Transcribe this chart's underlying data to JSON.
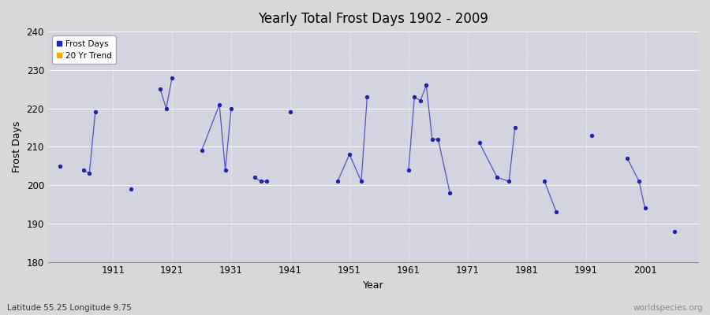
{
  "title": "Yearly Total Frost Days 1902 - 2009",
  "xlabel": "Year",
  "ylabel": "Frost Days",
  "subtitle": "Latitude 55.25 Longitude 9.75",
  "watermark": "worldspecies.org",
  "ylim": [
    180,
    240
  ],
  "xlim": [
    1900,
    2010
  ],
  "yticks": [
    180,
    190,
    200,
    210,
    220,
    230,
    240
  ],
  "xticks": [
    1911,
    1921,
    1931,
    1941,
    1951,
    1961,
    1971,
    1981,
    1991,
    2001
  ],
  "background_color": "#d8d8d8",
  "plot_bg_color": "#d4d4e0",
  "line_color": "#3333bb",
  "grid_color": "#ffffff",
  "scatter_color": "#2222aa",
  "legend_items": [
    "Frost Days",
    "20 Yr Trend"
  ],
  "legend_colors": [
    "#2222aa",
    "#ffa500"
  ],
  "frost_days": {
    "years": [
      1902,
      1906,
      1907,
      1908,
      1914,
      1919,
      1920,
      1921,
      1926,
      1929,
      1930,
      1931,
      1935,
      1936,
      1937,
      1941,
      1949,
      1951,
      1953,
      1954,
      1961,
      1962,
      1963,
      1964,
      1965,
      1966,
      1968,
      1973,
      1976,
      1978,
      1979,
      1984,
      1986,
      1992,
      1998,
      2000,
      2001,
      2006
    ],
    "values": [
      205,
      204,
      203,
      219,
      199,
      225,
      220,
      228,
      209,
      221,
      204,
      220,
      202,
      201,
      201,
      219,
      201,
      208,
      201,
      223,
      204,
      223,
      222,
      226,
      212,
      212,
      198,
      211,
      202,
      201,
      215,
      201,
      193,
      213,
      207,
      201,
      194,
      188
    ],
    "connect_gaps": 3
  }
}
